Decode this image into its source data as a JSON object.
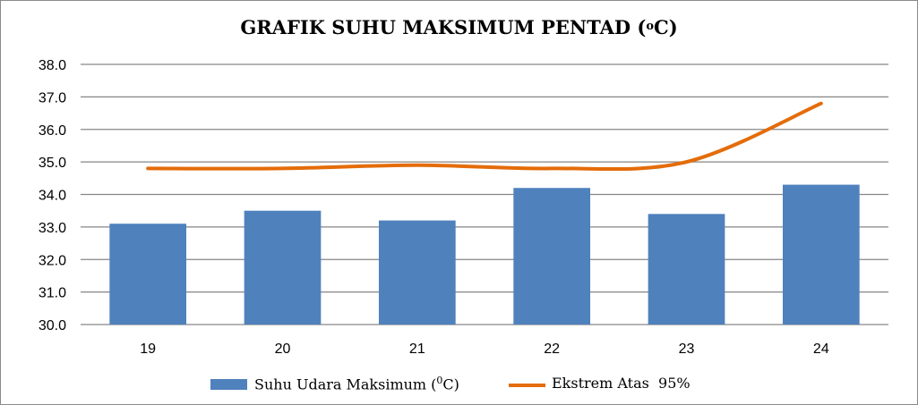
{
  "chart_data": {
    "type": "bar+line",
    "title": "GRAFIK SUHU MAKSIMUM PENTAD (",
    "title_degree": "o",
    "title_unit_tail": "C)",
    "categories": [
      "19",
      "20",
      "21",
      "22",
      "23",
      "24"
    ],
    "y_ticks": [
      "30.0",
      "31.0",
      "32.0",
      "33.0",
      "34.0",
      "35.0",
      "36.0",
      "37.0",
      "38.0"
    ],
    "ylim": [
      30,
      38
    ],
    "grid": true,
    "legend_position": "bottom",
    "series": [
      {
        "name": "Suhu Udara Maksimum (0C)",
        "type": "bar",
        "color": "#4f81bd",
        "values": [
          33.1,
          33.5,
          33.2,
          34.2,
          33.4,
          34.3
        ]
      },
      {
        "name": "Ekstrem Atas  95%",
        "type": "line",
        "color": "#e46c0a",
        "values": [
          34.8,
          34.8,
          34.9,
          34.8,
          35.0,
          36.8
        ]
      }
    ]
  },
  "legend": {
    "bar_label_prefix": "Suhu Udara Maksimum (",
    "bar_label_sup": "0",
    "bar_label_suffix": "C)",
    "line_label": "Ekstrem Atas  95%"
  }
}
